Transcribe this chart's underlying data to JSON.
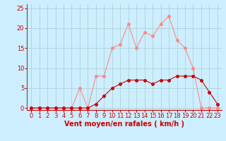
{
  "hours": [
    0,
    1,
    2,
    3,
    4,
    5,
    6,
    7,
    8,
    9,
    10,
    11,
    12,
    13,
    14,
    15,
    16,
    17,
    18,
    19,
    20,
    21,
    22,
    23
  ],
  "wind_avg": [
    0,
    0,
    0,
    0,
    0,
    0,
    0,
    0,
    1,
    3,
    5,
    6,
    7,
    7,
    7,
    6,
    7,
    7,
    8,
    8,
    8,
    7,
    4,
    1
  ],
  "wind_gust": [
    0,
    0,
    0,
    0,
    0,
    0,
    5,
    0,
    8,
    8,
    15,
    16,
    21,
    15,
    19,
    18,
    21,
    23,
    17,
    15,
    10,
    0,
    0,
    0
  ],
  "bg_color": "#cceeff",
  "grid_color": "#aacccc",
  "line_avg_color": "#cc0000",
  "line_gust_color": "#ff8888",
  "marker_size": 2.5,
  "xlabel": "Vent moyen/en rafales ( km/h )",
  "xlabel_color": "#cc0000",
  "xlabel_fontsize": 7,
  "tick_color": "#cc0000",
  "tick_fontsize": 6,
  "ylim": [
    -0.5,
    26
  ],
  "yticks": [
    0,
    5,
    10,
    15,
    20,
    25
  ],
  "xlim": [
    -0.5,
    23.5
  ]
}
